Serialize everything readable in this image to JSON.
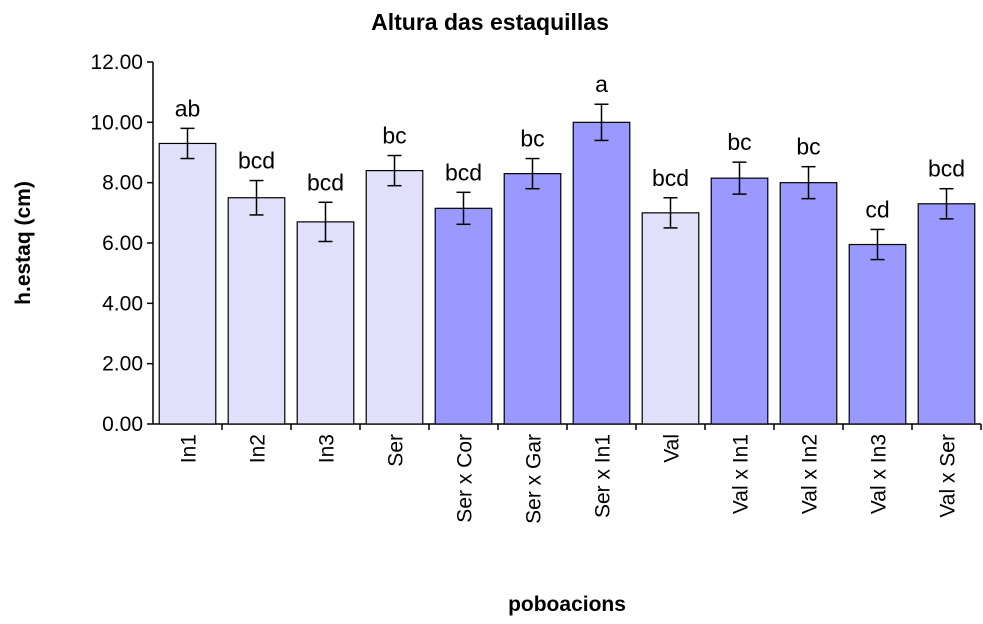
{
  "chart_data": {
    "type": "bar",
    "title": "Altura das estaquillas",
    "x_label": "poboacions",
    "y_label": "h.estaq (cm)",
    "categories": [
      "In1",
      "In2",
      "In3",
      "Ser",
      "Ser x Cor",
      "Ser x Gar",
      "Ser x In1",
      "Val",
      "Val x In1",
      "Val x In2",
      "Val x In3",
      "Val x Ser"
    ],
    "values": [
      9.3,
      7.5,
      6.7,
      8.4,
      7.15,
      8.3,
      10.0,
      7.0,
      8.15,
      8.0,
      5.95,
      7.3
    ],
    "errors": [
      0.5,
      0.57,
      0.65,
      0.5,
      0.53,
      0.5,
      0.6,
      0.5,
      0.53,
      0.53,
      0.5,
      0.5
    ],
    "annotations": [
      "ab",
      "bcd",
      "bcd",
      "bc",
      "bcd",
      "bc",
      "a",
      "bcd",
      "bc",
      "bc",
      "cd",
      "bcd"
    ],
    "colors": [
      "#e0e0fa",
      "#e0e0fa",
      "#e0e0fa",
      "#e0e0fa",
      "#9999ff",
      "#9999ff",
      "#9999ff",
      "#e0e0fa",
      "#9999ff",
      "#9999ff",
      "#9999ff",
      "#9999ff"
    ],
    "ylim": [
      0,
      12
    ],
    "yticks": [
      {
        "value": 0,
        "label": "0.00"
      },
      {
        "value": 2,
        "label": "2.00"
      },
      {
        "value": 4,
        "label": "4.00"
      },
      {
        "value": 6,
        "label": "6.00"
      },
      {
        "value": 8,
        "label": "8.00"
      },
      {
        "value": 10,
        "label": "10.00"
      },
      {
        "value": 12,
        "label": "12.00"
      }
    ],
    "grid": false
  }
}
